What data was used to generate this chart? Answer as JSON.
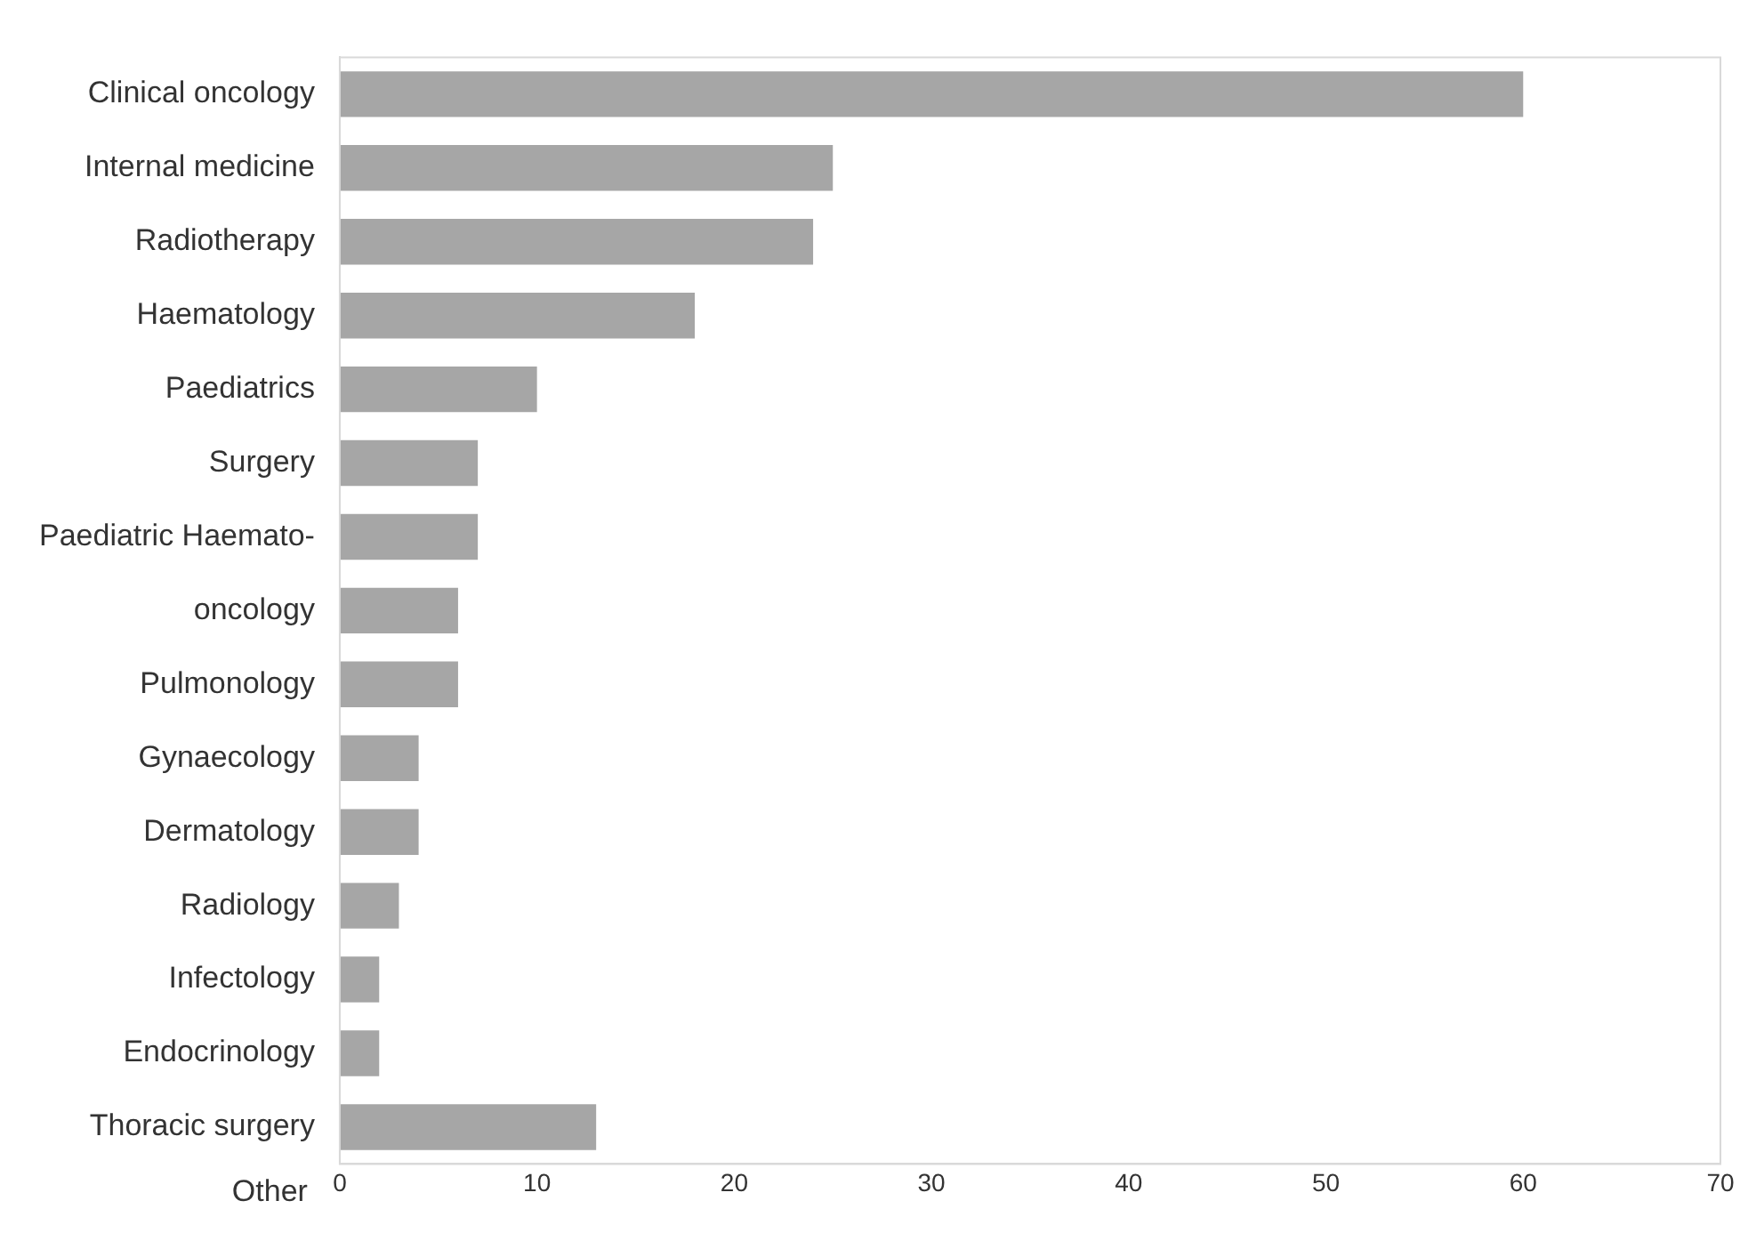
{
  "chart_data": {
    "type": "bar",
    "orientation": "horizontal",
    "categories": [
      "Clinical oncology",
      "Internal medicine",
      "Radiotherapy",
      "Haematology",
      "Paediatrics",
      "Surgery",
      "Paediatric Haemato-",
      "oncology",
      "Pulmonology",
      "Gynaecology",
      "Dermatology",
      "Radiology",
      "Infectology",
      "Endocrinology",
      "Thoracic surgery"
    ],
    "values": [
      60,
      25,
      24,
      18,
      10,
      7,
      7,
      6,
      6,
      4,
      4,
      3,
      2,
      2,
      13
    ],
    "color": "#a6a6a6",
    "xlim": [
      0,
      70
    ],
    "xticks": [
      0,
      10,
      20,
      30,
      40,
      50,
      60,
      70
    ],
    "grid": false,
    "legend": false,
    "annotations": [
      "Other"
    ]
  }
}
